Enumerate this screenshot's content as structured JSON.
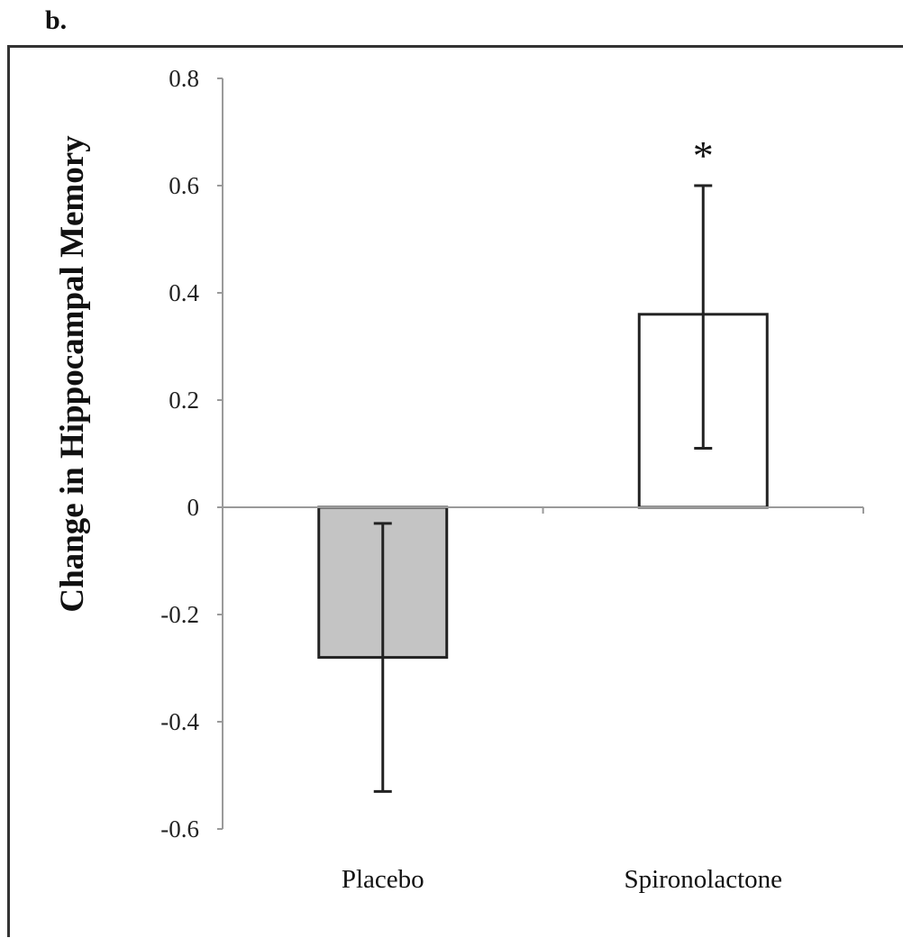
{
  "panel_label": "b.",
  "chart_data": {
    "type": "bar",
    "title": "",
    "xlabel": "",
    "ylabel": "Change in Hippocampal Memory",
    "categories": [
      "Placebo",
      "Spironolactone"
    ],
    "values": [
      -0.28,
      0.36
    ],
    "error_bars": [
      {
        "low": -0.53,
        "high": -0.03
      },
      {
        "low": 0.11,
        "high": 0.6
      }
    ],
    "annotations": [
      "",
      "*"
    ],
    "ylim": [
      -0.6,
      0.8
    ],
    "yticks": [
      "0.8",
      "0.6",
      "0.4",
      "0.2",
      "0",
      "-0.2",
      "-0.4",
      "-0.6"
    ],
    "ytick_values": [
      0.8,
      0.6,
      0.4,
      0.2,
      0,
      -0.2,
      -0.4,
      -0.6
    ],
    "bar_colors": [
      "#c4c4c4",
      "#ffffff"
    ],
    "grid": false,
    "legend": "none"
  }
}
